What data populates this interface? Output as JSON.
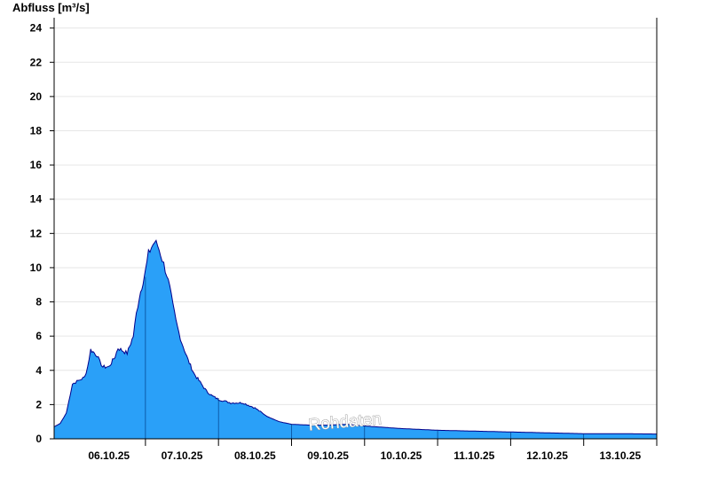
{
  "chart_data": {
    "type": "area",
    "ylabel": "Abfluss [m³/s]",
    "ylim": [
      0,
      24.5
    ],
    "y_ticks": [
      0,
      2,
      4,
      6,
      8,
      10,
      12,
      14,
      16,
      18,
      20,
      22,
      24
    ],
    "x_ticks": [
      "06.10.25",
      "07.10.25",
      "08.10.25",
      "09.10.25",
      "10.10.25",
      "11.10.25",
      "12.10.25",
      "13.10.25"
    ],
    "xlim": [
      "05.10.25 18:00",
      "13.10.25 24:00"
    ],
    "grid": true,
    "watermark": "Rohdaten",
    "colors": {
      "fill": "#2aa0f8",
      "line": "#00008b",
      "grid": "#e6e6e6",
      "axis": "#000000"
    },
    "series": [
      {
        "x": [
          "05.10.25 18:00",
          "05.10.25 20:00",
          "05.10.25 22:00",
          "06.10.25 00:00",
          "06.10.25 01:00",
          "06.10.25 02:00",
          "06.10.25 03:00",
          "06.10.25 04:00",
          "06.10.25 05:00",
          "06.10.25 06:00",
          "06.10.25 08:00",
          "06.10.25 09:00",
          "06.10.25 10:00",
          "06.10.25 12:00",
          "06.10.25 14:00",
          "06.10.25 15:00",
          "06.10.25 18:00",
          "06.10.25 20:00",
          "06.10.25 21:00",
          "06.10.25 22:00",
          "06.10.25 24:00",
          "07.10.25 01:00",
          "07.10.25 02:00",
          "07.10.25 03:00",
          "07.10.25 04:00",
          "07.10.25 05:00",
          "07.10.25 06:00",
          "07.10.25 07:00",
          "07.10.25 08:00",
          "07.10.25 09:00",
          "07.10.25 10:00",
          "07.10.25 11:00",
          "07.10.25 12:00",
          "07.10.25 14:00",
          "07.10.25 16:00",
          "07.10.25 18:00",
          "07.10.25 20:00",
          "07.10.25 22:00",
          "08.10.25 00:00",
          "08.10.25 04:00",
          "08.10.25 08:00",
          "08.10.25 12:00",
          "08.10.25 16:00",
          "08.10.25 20:00",
          "09.10.25 00:00",
          "09.10.25 06:00",
          "09.10.25 12:00",
          "09.10.25 18:00",
          "10.10.25 00:00",
          "10.10.25 12:00",
          "11.10.25 00:00",
          "11.10.25 12:00",
          "12.10.25 00:00",
          "12.10.25 12:00",
          "13.10.25 00:00",
          "13.10.25 12:00",
          "13.10.25 24:00"
        ],
        "y": [
          0.7,
          0.9,
          1.5,
          3.2,
          3.3,
          3.4,
          3.5,
          3.6,
          4.2,
          5.2,
          4.9,
          4.5,
          4.2,
          4.2,
          4.8,
          5.3,
          5.0,
          6.0,
          7.3,
          8.3,
          9.8,
          10.8,
          11.2,
          11.5,
          11.3,
          10.8,
          10.2,
          9.6,
          8.8,
          7.8,
          6.9,
          6.2,
          5.6,
          4.6,
          3.8,
          3.3,
          2.8,
          2.5,
          2.3,
          2.1,
          2.1,
          1.8,
          1.3,
          1.0,
          0.85,
          0.8,
          0.8,
          0.85,
          0.75,
          0.6,
          0.5,
          0.45,
          0.4,
          0.35,
          0.3,
          0.3,
          0.28
        ]
      }
    ]
  }
}
